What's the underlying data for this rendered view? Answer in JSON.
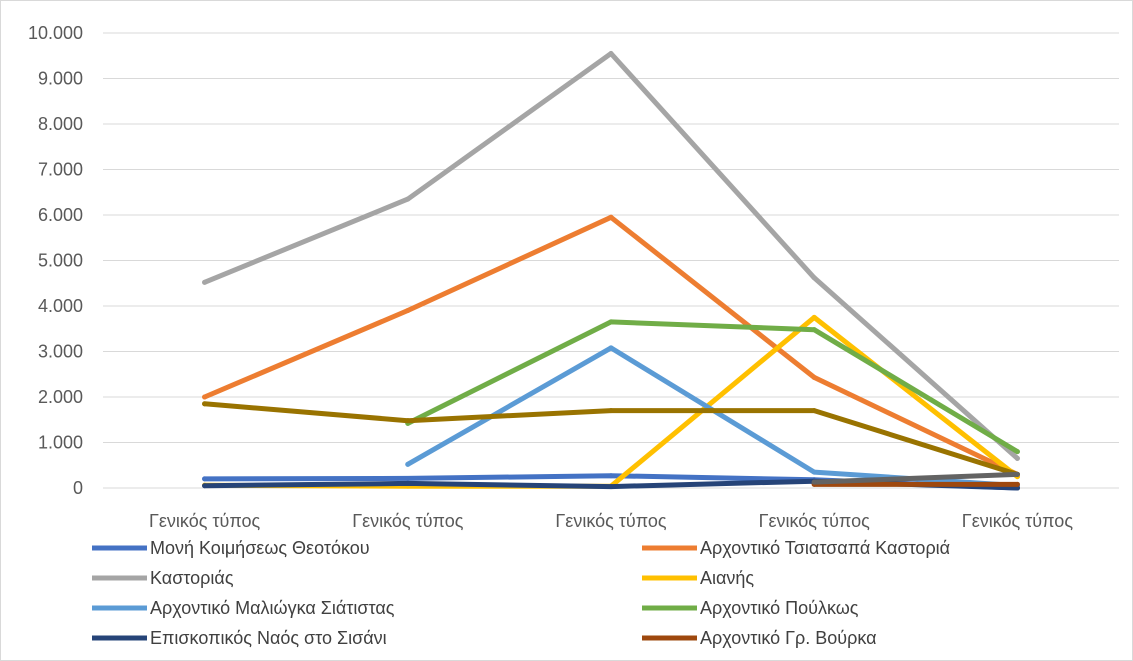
{
  "chart_data": {
    "type": "line",
    "title": "",
    "xlabel": "",
    "ylabel": "",
    "categories": [
      "Γενικός τύπος",
      "Γενικός τύπος",
      "Γενικός τύπος",
      "Γενικός τύπος",
      "Γενικός τύπος"
    ],
    "ylim": [
      0,
      10000
    ],
    "yticks": [
      0,
      1000,
      2000,
      3000,
      4000,
      5000,
      6000,
      7000,
      8000,
      9000,
      10000
    ],
    "ytick_labels": [
      "0",
      "1.000",
      "2.000",
      "3.000",
      "4.000",
      "5.000",
      "6.000",
      "7.000",
      "8.000",
      "9.000",
      "10.000"
    ],
    "grid": true,
    "legend_position": "bottom",
    "series": [
      {
        "name": "Μονή Κοιμήσεως Θεοτόκου",
        "color": "#4472c4",
        "values": [
          200,
          210,
          270,
          180,
          0
        ]
      },
      {
        "name": "Αρχοντικό Τσιατσαπά Καστοριά",
        "color": "#ed7d31",
        "values": [
          2000,
          3900,
          5950,
          2430,
          300
        ]
      },
      {
        "name": "Καστοριάς",
        "color": "#a5a5a5",
        "values": [
          4520,
          6350,
          9550,
          4620,
          650
        ]
      },
      {
        "name": "Αιανής",
        "color": "#ffc000",
        "values": [
          60,
          40,
          40,
          3750,
          250
        ]
      },
      {
        "name": "Αρχοντικό Μαλιώγκα Σιάτιστας",
        "color": "#5b9bd5",
        "values": [
          null,
          520,
          3080,
          350,
          50
        ]
      },
      {
        "name": "Αρχοντικό Πούλκως",
        "color": "#70ad47",
        "values": [
          null,
          1420,
          3650,
          3480,
          800
        ]
      },
      {
        "name": "Επισκοπικός Ναός στο Σισάνι",
        "color": "#264478",
        "values": [
          50,
          100,
          30,
          150,
          0
        ]
      },
      {
        "name": "Αρχοντικό Γρ. Βούρκα",
        "color": "#9e480e",
        "values": [
          null,
          null,
          null,
          80,
          80
        ]
      },
      {
        "name": "",
        "color": "#997300",
        "values": [
          1850,
          1480,
          1700,
          1700,
          300
        ]
      },
      {
        "name": "",
        "color": "#636363",
        "values": [
          null,
          null,
          null,
          130,
          300
        ]
      }
    ]
  }
}
